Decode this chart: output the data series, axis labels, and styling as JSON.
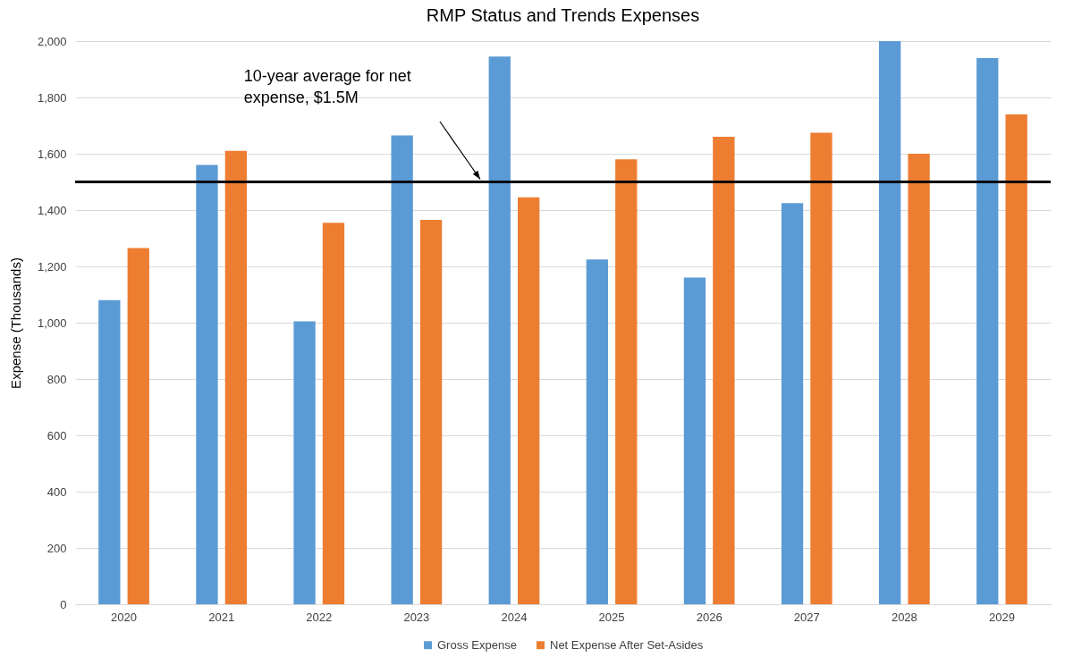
{
  "chart_data": {
    "type": "bar",
    "title": "RMP Status and Trends Expenses",
    "ylabel": "Expense (Thousands)",
    "categories": [
      "2020",
      "2021",
      "2022",
      "2023",
      "2024",
      "2025",
      "2026",
      "2027",
      "2028",
      "2029"
    ],
    "series": [
      {
        "name": "Gross Expense",
        "color": "#5b9bd5",
        "values": [
          1080,
          1560,
          1005,
          1665,
          1945,
          1225,
          1160,
          1425,
          2000,
          1940
        ]
      },
      {
        "name": "Net Expense After Set-Asides",
        "color": "#ed7d31",
        "values": [
          1265,
          1610,
          1355,
          1365,
          1445,
          1580,
          1660,
          1675,
          1600,
          1740
        ]
      }
    ],
    "ylim": [
      0,
      2000
    ],
    "yticks": [
      {
        "value": 0,
        "label": "0"
      },
      {
        "value": 200,
        "label": "200"
      },
      {
        "value": 400,
        "label": "400"
      },
      {
        "value": 600,
        "label": "600"
      },
      {
        "value": 800,
        "label": "800"
      },
      {
        "value": 1000,
        "label": "1,000"
      },
      {
        "value": 1200,
        "label": "1,200"
      },
      {
        "value": 1400,
        "label": "1,400"
      },
      {
        "value": 1600,
        "label": "1,600"
      },
      {
        "value": 1800,
        "label": "1,800"
      },
      {
        "value": 2000,
        "label": "2,000"
      }
    ],
    "grid": "y",
    "legend": "bottom",
    "annotations": [
      "10-year average for net expense, $1.5M"
    ],
    "ref_lines": [
      {
        "axis": "y",
        "value": 1500,
        "color": "#000000"
      }
    ]
  }
}
